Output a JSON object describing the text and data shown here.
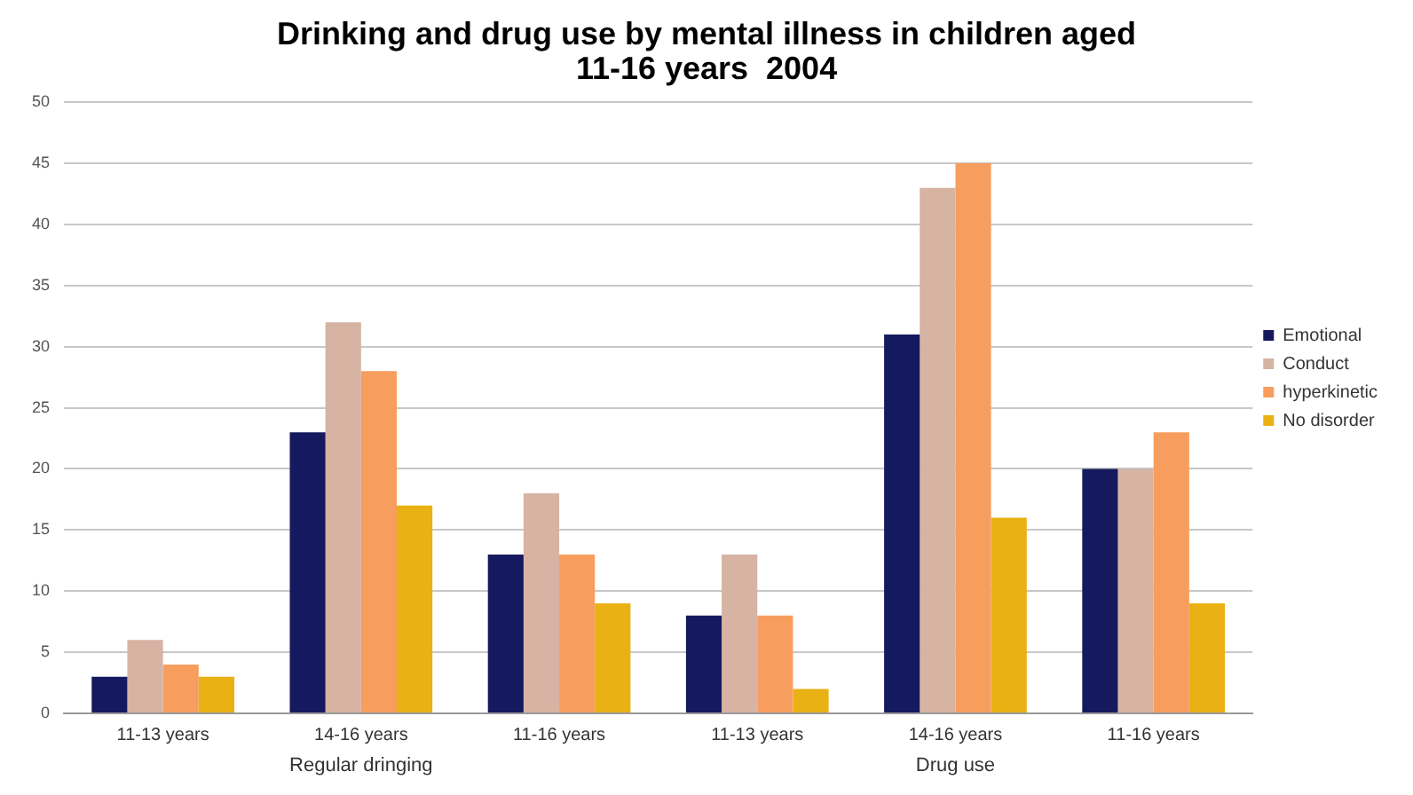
{
  "chart_data": {
    "type": "bar",
    "title": "Drinking and drug use by mental illness in children aged\n11-16 years  2004",
    "categories": [
      "11-13 years",
      "14-16 years",
      "11-16 years",
      "11-13 years",
      "14-16 years",
      "11-16 years"
    ],
    "series": [
      {
        "name": "Emotional",
        "color": "#151a5e",
        "values": [
          3,
          23,
          13,
          8,
          31,
          20
        ]
      },
      {
        "name": "Conduct",
        "color": "#d6b3a3",
        "values": [
          6,
          32,
          18,
          13,
          43,
          20
        ]
      },
      {
        "name": "hyperkinetic",
        "color": "#f79e5e",
        "values": [
          4,
          28,
          13,
          8,
          45,
          23
        ]
      },
      {
        "name": "No disorder",
        "color": "#e9b114",
        "values": [
          3,
          17,
          9,
          2,
          16,
          9
        ]
      }
    ],
    "annotations": [
      "Regular dringing",
      "Drug use"
    ],
    "ylim": [
      0,
      50
    ],
    "yticks": [
      0,
      5,
      10,
      15,
      20,
      25,
      30,
      35,
      40,
      45,
      50
    ],
    "grid": "y",
    "legend": "right"
  }
}
